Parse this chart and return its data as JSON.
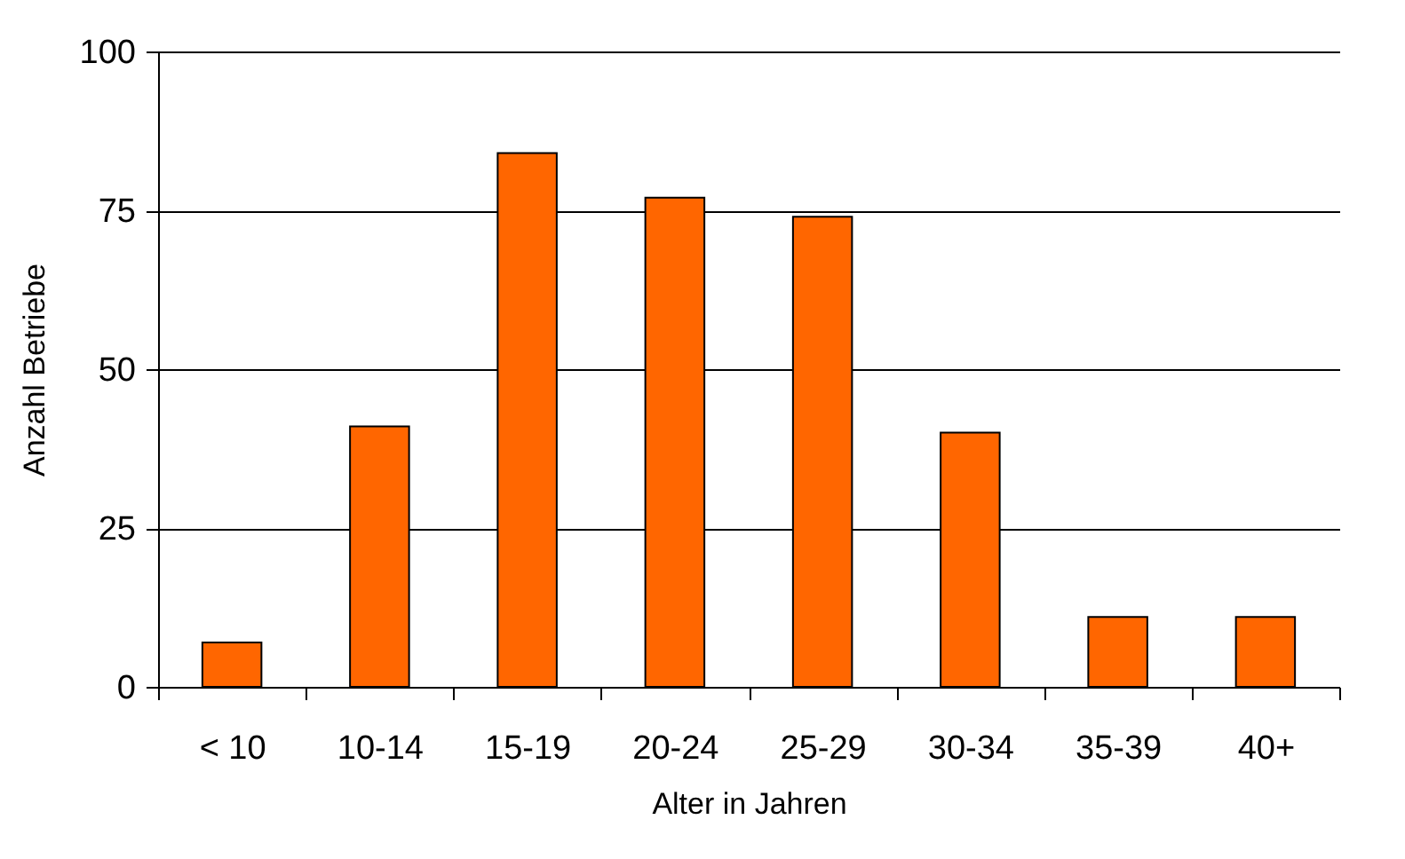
{
  "chart_data": {
    "type": "bar",
    "xlabel": "Alter in Jahren",
    "ylabel": "Anzahl Betriebe",
    "categories": [
      "< 10",
      "10-14",
      "15-19",
      "20-24",
      "25-29",
      "30-34",
      "35-39",
      "40+"
    ],
    "values": [
      7,
      41,
      84,
      77,
      74,
      40,
      11,
      11
    ],
    "color": "#ff6600",
    "ylim": [
      0,
      100
    ],
    "yticks": [
      0,
      25,
      50,
      75,
      100
    ],
    "grid": "y"
  }
}
